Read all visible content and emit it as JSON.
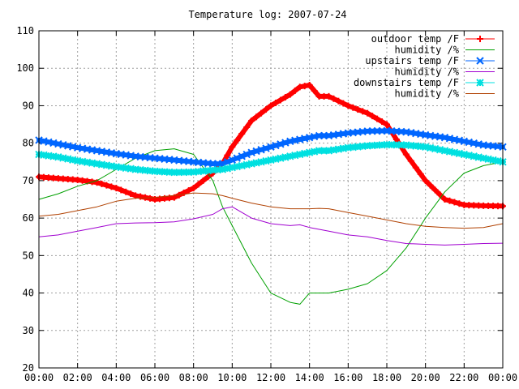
{
  "chart_data": {
    "type": "line",
    "title": "Temperature log: 2007-07-24",
    "xlabel": "",
    "ylabel": "",
    "xlim": [
      "00:00",
      "24:00"
    ],
    "ylim": [
      20,
      110
    ],
    "grid": true,
    "legend_position": "top-right",
    "x_tick_labels": [
      "00:00",
      "02:00",
      "04:00",
      "06:00",
      "08:00",
      "10:00",
      "12:00",
      "14:00",
      "16:00",
      "18:00",
      "20:00",
      "22:00",
      "00:00"
    ],
    "y_tick_labels": [
      "20",
      "30",
      "40",
      "50",
      "60",
      "70",
      "80",
      "90",
      "100",
      "110"
    ],
    "x_hours": [
      0,
      1,
      2,
      3,
      4,
      5,
      6,
      7,
      8,
      9,
      9.5,
      10,
      11,
      12,
      13,
      13.5,
      14,
      14.5,
      15,
      16,
      17,
      18,
      19,
      20,
      21,
      22,
      23,
      24
    ],
    "series": [
      {
        "name": "outdoor temp /F",
        "color": "#ff0000",
        "marker": "plus",
        "y": [
          71,
          70.6,
          70.2,
          69.5,
          68,
          66,
          65,
          65.5,
          68,
          72,
          74.5,
          79,
          86,
          90,
          93,
          95,
          95.5,
          92.5,
          92.5,
          90,
          88,
          85,
          77,
          70,
          65,
          63.5,
          63.3,
          63.2
        ]
      },
      {
        "name": "humidity /%",
        "color": "#00a000",
        "marker": "none",
        "y": [
          65,
          66.5,
          68.5,
          70,
          73,
          76,
          78,
          78.5,
          77,
          70,
          63,
          58,
          48,
          40,
          37.5,
          37,
          40,
          40,
          40,
          41,
          42.5,
          46,
          52,
          60,
          67,
          72,
          74,
          75
        ]
      },
      {
        "name": "upstairs temp /F",
        "color": "#0066ff",
        "marker": "cross",
        "y": [
          80.8,
          79.8,
          78.8,
          78,
          77.2,
          76.5,
          76,
          75.5,
          75,
          74.5,
          74.5,
          75.5,
          77.5,
          79,
          80.5,
          81,
          81.5,
          82,
          82,
          82.7,
          83.2,
          83.3,
          83,
          82.2,
          81.5,
          80.5,
          79.5,
          79
        ]
      },
      {
        "name": "humidity /%",
        "color": "#a000d0",
        "marker": "none",
        "y": [
          55,
          55.5,
          56.5,
          57.5,
          58.5,
          58.7,
          58.8,
          59,
          59.8,
          61,
          62.5,
          63,
          60,
          58.5,
          58,
          58.2,
          57.5,
          57,
          56.5,
          55.5,
          55,
          54,
          53.2,
          53,
          52.8,
          53,
          53.2,
          53.3
        ]
      },
      {
        "name": "downstairs temp /F",
        "color": "#00e0e0",
        "marker": "star",
        "y": [
          77,
          76.3,
          75.3,
          74.5,
          73.7,
          73,
          72.5,
          72.2,
          72.3,
          72.8,
          73,
          73.5,
          74.5,
          75.5,
          76.5,
          77,
          77.5,
          78,
          78,
          78.8,
          79.3,
          79.6,
          79.5,
          79,
          78,
          77,
          76,
          75
        ]
      },
      {
        "name": "humidity /%",
        "color": "#b04000",
        "marker": "none",
        "y": [
          60.5,
          61,
          62,
          63,
          64.5,
          65.3,
          65.5,
          66,
          66.7,
          66.5,
          66,
          65.3,
          64,
          63,
          62.5,
          62.5,
          62.5,
          62.6,
          62.5,
          61.5,
          60.5,
          59.5,
          58.5,
          57.8,
          57.5,
          57.3,
          57.5,
          58.5
        ]
      }
    ]
  }
}
